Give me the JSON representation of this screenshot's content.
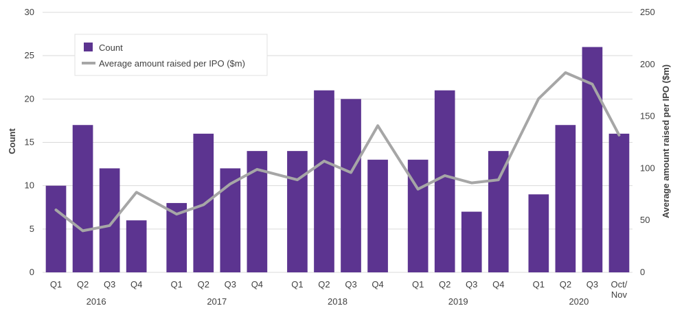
{
  "colors": {
    "bar": "#5c3490",
    "line": "#a6a6a6",
    "grid": "#d9d9d9",
    "text": "#404040"
  },
  "chart_data": {
    "type": "bar",
    "title": "",
    "y_left_label": "Count",
    "y_right_label": "Average amount raised per IPO ($m)",
    "y_left_lim": [
      0,
      30
    ],
    "y_left_ticks": [
      "0",
      "5",
      "10",
      "15",
      "20",
      "25",
      "30"
    ],
    "y_right_lim": [
      0,
      250
    ],
    "y_right_ticks": [
      "0",
      "50",
      "100",
      "150",
      "200",
      "250"
    ],
    "grid": true,
    "legend_position": "top-left",
    "legend": [
      {
        "label": "Count",
        "marker": "square"
      },
      {
        "label": "Average amount raised per IPO ($m)",
        "marker": "line"
      }
    ],
    "groups": [
      {
        "year": "2016",
        "quarters": [
          "Q1",
          "Q2",
          "Q3",
          "Q4"
        ]
      },
      {
        "year": "2017",
        "quarters": [
          "Q1",
          "Q2",
          "Q3",
          "Q4"
        ]
      },
      {
        "year": "2018",
        "quarters": [
          "Q1",
          "Q2",
          "Q3",
          "Q4"
        ]
      },
      {
        "year": "2019",
        "quarters": [
          "Q1",
          "Q2",
          "Q3",
          "Q4"
        ]
      },
      {
        "year": "2020",
        "quarters": [
          "Q1",
          "Q2",
          "Q3",
          "Oct/\nNov"
        ]
      }
    ],
    "series": [
      {
        "name": "Count",
        "type": "bar",
        "axis": "left",
        "values": [
          10,
          17,
          12,
          6,
          8,
          16,
          12,
          14,
          14,
          21,
          20,
          13,
          13,
          21,
          7,
          14,
          9,
          17,
          26,
          16
        ]
      },
      {
        "name": "Average amount raised per IPO ($m)",
        "type": "line",
        "axis": "right",
        "values": [
          60,
          40,
          45,
          77,
          56,
          65,
          85,
          99,
          89,
          107,
          96,
          141,
          80,
          93,
          86,
          89,
          167,
          192,
          181,
          132
        ]
      }
    ]
  }
}
